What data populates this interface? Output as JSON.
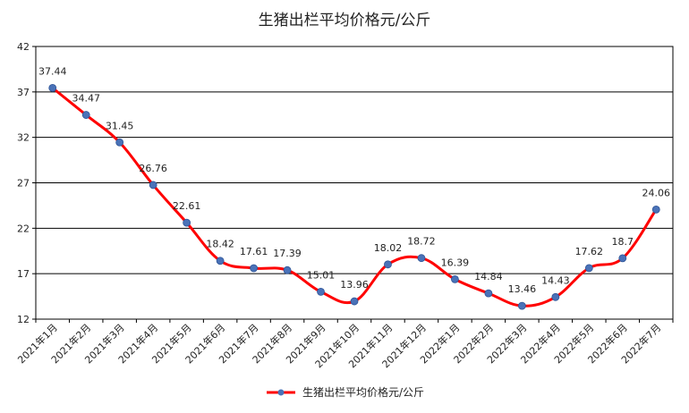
{
  "chart_data": {
    "type": "line",
    "title": "生猪出栏平均价格元/公斤",
    "categories": [
      "2021年1月",
      "2021年2月",
      "2021年3月",
      "2021年4月",
      "2021年5月",
      "2021年6月",
      "2021年7月",
      "2021年8月",
      "2021年9月",
      "2021年10月",
      "2021年11月",
      "2021年12月",
      "2022年1月",
      "2022年2月",
      "2022年3月",
      "2022年4月",
      "2022年5月",
      "2022年6月",
      "2022年7月"
    ],
    "series": [
      {
        "name": "生猪出栏平均价格元/公斤",
        "values": [
          37.44,
          34.47,
          31.45,
          26.76,
          22.61,
          18.42,
          17.61,
          17.39,
          15.01,
          13.96,
          18.02,
          18.72,
          16.39,
          14.84,
          13.46,
          14.43,
          17.62,
          18.7,
          24.06
        ],
        "data_labels": [
          "37.44",
          "34.47",
          "31.45",
          "26.76",
          "22.61",
          "18.42",
          "17.61",
          "17.39",
          "15.01",
          "13.96",
          "18.02",
          "18.72",
          "16.39",
          "14.84",
          "13.46",
          "14.43",
          "17.62",
          "18.7",
          "24.06"
        ],
        "line_color": "#ff0000",
        "marker_color": "#4a72b8"
      }
    ],
    "ylim": [
      12,
      42
    ],
    "yticks": [
      "12",
      "17",
      "22",
      "27",
      "32",
      "37",
      "42"
    ],
    "xlabel": "",
    "ylabel": "",
    "grid": true,
    "legend": "bottom"
  }
}
